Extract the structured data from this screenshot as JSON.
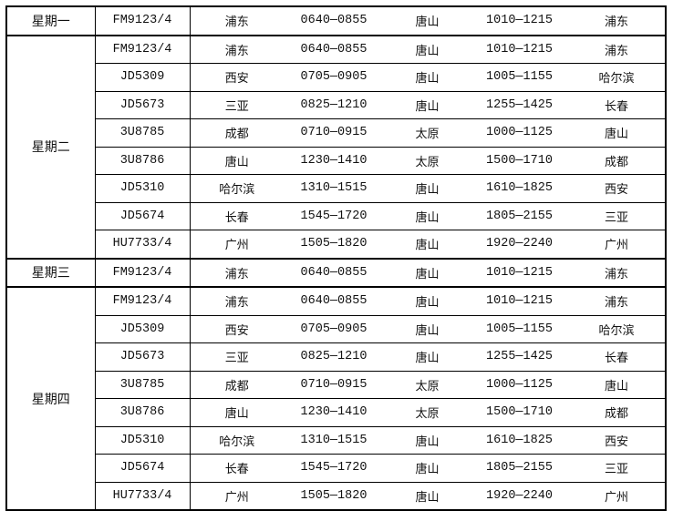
{
  "groups": [
    {
      "day": "星期一",
      "rows": [
        [
          "FM9123/4",
          "浦东",
          "0640—0855",
          "唐山",
          "1010—1215",
          "浦东"
        ]
      ]
    },
    {
      "day": "星期二",
      "rows": [
        [
          "FM9123/4",
          "浦东",
          "0640—0855",
          "唐山",
          "1010—1215",
          "浦东"
        ],
        [
          "JD5309",
          "西安",
          "0705—0905",
          "唐山",
          "1005—1155",
          "哈尔滨"
        ],
        [
          "JD5673",
          "三亚",
          "0825—1210",
          "唐山",
          "1255—1425",
          "长春"
        ],
        [
          "3U8785",
          "成都",
          "0710—0915",
          "太原",
          "1000—1125",
          "唐山"
        ],
        [
          "3U8786",
          "唐山",
          "1230—1410",
          "太原",
          "1500—1710",
          "成都"
        ],
        [
          "JD5310",
          "哈尔滨",
          "1310—1515",
          "唐山",
          "1610—1825",
          "西安"
        ],
        [
          "JD5674",
          "长春",
          "1545—1720",
          "唐山",
          "1805—2155",
          "三亚"
        ],
        [
          "HU7733/4",
          "广州",
          "1505—1820",
          "唐山",
          "1920—2240",
          "广州"
        ]
      ]
    },
    {
      "day": "星期三",
      "rows": [
        [
          "FM9123/4",
          "浦东",
          "0640—0855",
          "唐山",
          "1010—1215",
          "浦东"
        ]
      ]
    },
    {
      "day": "星期四",
      "rows": [
        [
          "FM9123/4",
          "浦东",
          "0640—0855",
          "唐山",
          "1010—1215",
          "浦东"
        ],
        [
          "JD5309",
          "西安",
          "0705—0905",
          "唐山",
          "1005—1155",
          "哈尔滨"
        ],
        [
          "JD5673",
          "三亚",
          "0825—1210",
          "唐山",
          "1255—1425",
          "长春"
        ],
        [
          "3U8785",
          "成都",
          "0710—0915",
          "太原",
          "1000—1125",
          "唐山"
        ],
        [
          "3U8786",
          "唐山",
          "1230—1410",
          "太原",
          "1500—1710",
          "成都"
        ],
        [
          "JD5310",
          "哈尔滨",
          "1310—1515",
          "唐山",
          "1610—1825",
          "西安"
        ],
        [
          "JD5674",
          "长春",
          "1545—1720",
          "唐山",
          "1805—2155",
          "三亚"
        ],
        [
          "HU7733/4",
          "广州",
          "1505—1820",
          "唐山",
          "1920—2240",
          "广州"
        ]
      ]
    }
  ]
}
